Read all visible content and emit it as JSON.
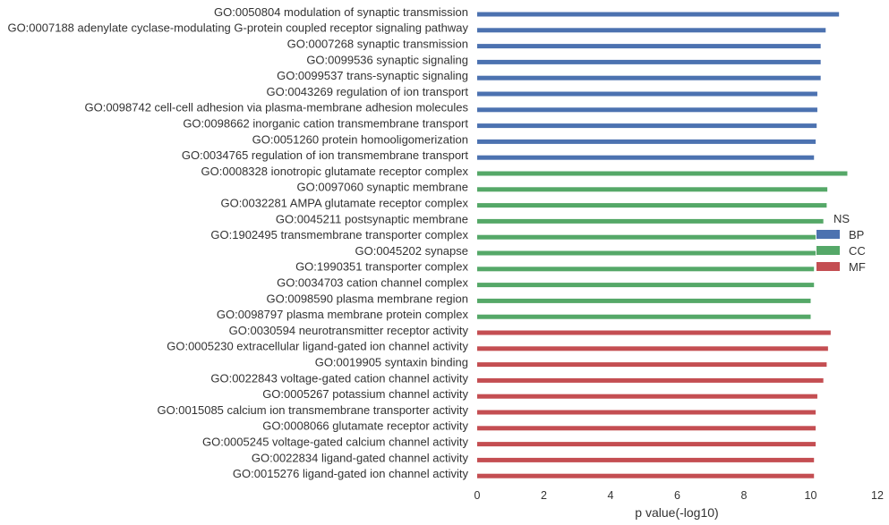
{
  "chart_data": {
    "type": "bar",
    "orientation": "horizontal",
    "xlabel": "p value(-log10)",
    "xlim": [
      0,
      12
    ],
    "xticks": [
      "0",
      "2",
      "4",
      "6",
      "8",
      "10",
      "12"
    ],
    "grid": false,
    "legend": {
      "title": "NS",
      "placement": "right",
      "entries": [
        {
          "name": "BP",
          "color": "#4C72B0"
        },
        {
          "name": "CC",
          "color": "#55A868"
        },
        {
          "name": "MF",
          "color": "#C44E52"
        }
      ]
    },
    "rows": [
      {
        "label": "GO:0050804 modulation of synaptic transmission",
        "value": 10.85,
        "group": "BP"
      },
      {
        "label": "GO:0007188 adenylate cyclase-modulating G-protein coupled receptor signaling pathway",
        "value": 10.45,
        "group": "BP"
      },
      {
        "label": "GO:0007268 synaptic transmission",
        "value": 10.3,
        "group": "BP"
      },
      {
        "label": "GO:0099536 synaptic signaling",
        "value": 10.3,
        "group": "BP"
      },
      {
        "label": "GO:0099537 trans-synaptic signaling",
        "value": 10.3,
        "group": "BP"
      },
      {
        "label": "GO:0043269 regulation of ion transport",
        "value": 10.2,
        "group": "BP"
      },
      {
        "label": "GO:0098742 cell-cell adhesion via plasma-membrane adhesion molecules",
        "value": 10.2,
        "group": "BP"
      },
      {
        "label": "GO:0098662 inorganic cation transmembrane transport",
        "value": 10.18,
        "group": "BP"
      },
      {
        "label": "GO:0051260 protein homooligomerization",
        "value": 10.15,
        "group": "BP"
      },
      {
        "label": "GO:0034765 regulation of ion transmembrane transport",
        "value": 10.1,
        "group": "BP"
      },
      {
        "label": "GO:0008328 ionotropic glutamate receptor complex",
        "value": 11.1,
        "group": "CC"
      },
      {
        "label": "GO:0097060 synaptic membrane",
        "value": 10.5,
        "group": "CC"
      },
      {
        "label": "GO:0032281 AMPA glutamate receptor complex",
        "value": 10.48,
        "group": "CC"
      },
      {
        "label": "GO:0045211 postsynaptic membrane",
        "value": 10.38,
        "group": "CC"
      },
      {
        "label": "GO:1902495 transmembrane transporter complex",
        "value": 10.15,
        "group": "CC"
      },
      {
        "label": "GO:0045202 synapse",
        "value": 10.15,
        "group": "CC"
      },
      {
        "label": "GO:1990351 transporter complex",
        "value": 10.1,
        "group": "CC"
      },
      {
        "label": "GO:0034703 cation channel complex",
        "value": 10.1,
        "group": "CC"
      },
      {
        "label": "GO:0098590 plasma membrane region",
        "value": 10.0,
        "group": "CC"
      },
      {
        "label": "GO:0098797 plasma membrane protein complex",
        "value": 10.0,
        "group": "CC"
      },
      {
        "label": "GO:0030594 neurotransmitter receptor activity",
        "value": 10.6,
        "group": "MF"
      },
      {
        "label": "GO:0005230 extracellular ligand-gated ion channel activity",
        "value": 10.52,
        "group": "MF"
      },
      {
        "label": "GO:0019905 syntaxin binding",
        "value": 10.48,
        "group": "MF"
      },
      {
        "label": "GO:0022843 voltage-gated cation channel activity",
        "value": 10.38,
        "group": "MF"
      },
      {
        "label": "GO:0005267 potassium channel activity",
        "value": 10.2,
        "group": "MF"
      },
      {
        "label": "GO:0015085 calcium ion transmembrane transporter activity",
        "value": 10.15,
        "group": "MF"
      },
      {
        "label": "GO:0008066 glutamate receptor activity",
        "value": 10.15,
        "group": "MF"
      },
      {
        "label": "GO:0005245 voltage-gated calcium channel activity",
        "value": 10.15,
        "group": "MF"
      },
      {
        "label": "GO:0022834 ligand-gated channel activity",
        "value": 10.1,
        "group": "MF"
      },
      {
        "label": "GO:0015276 ligand-gated ion channel activity",
        "value": 10.1,
        "group": "MF"
      }
    ]
  }
}
